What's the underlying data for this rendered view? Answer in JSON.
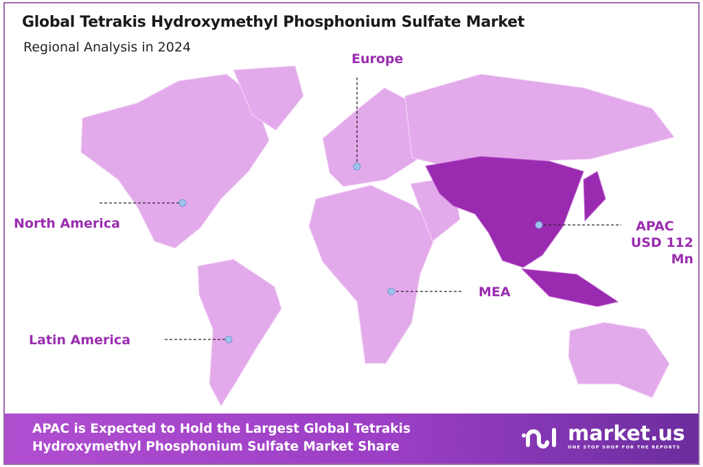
{
  "header": {
    "title": "Global Tetrakis Hydroxymethyl Phosphonium Sulfate Market",
    "subtitle": "Regional Analysis in 2024"
  },
  "map": {
    "colors": {
      "region": "#e3aaeb",
      "highlight": "#9a2bb0",
      "label": "#9a2db0",
      "marker": "#9fc3ee"
    },
    "highlighted_region": "APAC",
    "regions": [
      {
        "name": "North America"
      },
      {
        "name": "Europe"
      },
      {
        "name": "APAC",
        "value": "USD 112 Mn"
      },
      {
        "name": "MEA"
      },
      {
        "name": "Latin America"
      }
    ]
  },
  "footer": {
    "line1": "APAC is Expected to Hold the Largest Global Tetrakis",
    "line2": "Hydroxymethyl Phosphonium Sulfate Market Share",
    "logo": {
      "name": "market.us",
      "tagline": "ONE STOP SHOP FOR THE REPORTS"
    }
  }
}
